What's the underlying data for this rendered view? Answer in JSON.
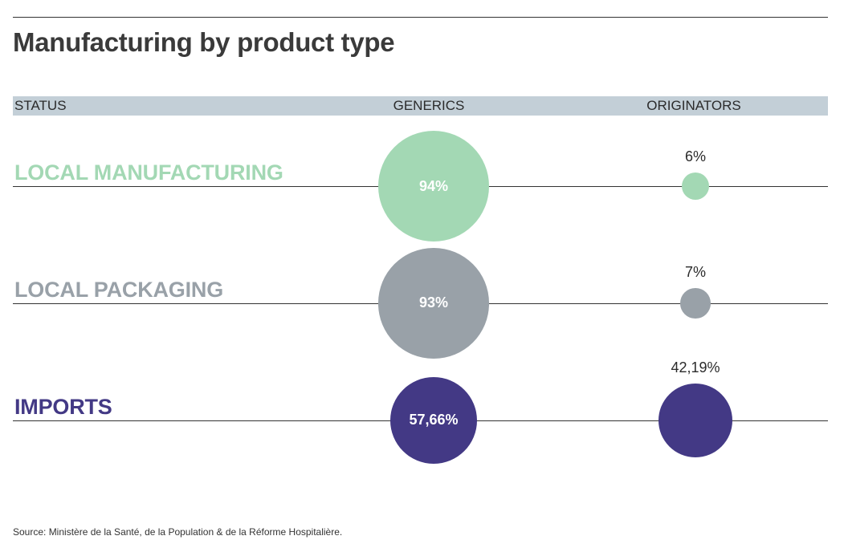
{
  "chart_data": {
    "type": "bubble",
    "title": "Manufacturing by product type",
    "columns": {
      "status": "STATUS",
      "generics": "GENERICS",
      "originators": "ORIGINATORS"
    },
    "rows": [
      {
        "label": "LOCAL MANUFACTURING",
        "color": "#a3d8b4",
        "generics": 94,
        "generics_label": "94%",
        "originators": 6,
        "originators_label": "6%"
      },
      {
        "label": "LOCAL PACKAGING",
        "color": "#99a1a8",
        "generics": 93,
        "generics_label": "93%",
        "originators": 7,
        "originators_label": "7%"
      },
      {
        "label": "IMPORTS",
        "color": "#433985",
        "generics": 57.66,
        "generics_label": "57,66%",
        "originators": 42.19,
        "originators_label": "42,19%"
      }
    ],
    "source": "Source: Ministère de la Santé, de la Population & de la Réforme Hospitalière."
  }
}
